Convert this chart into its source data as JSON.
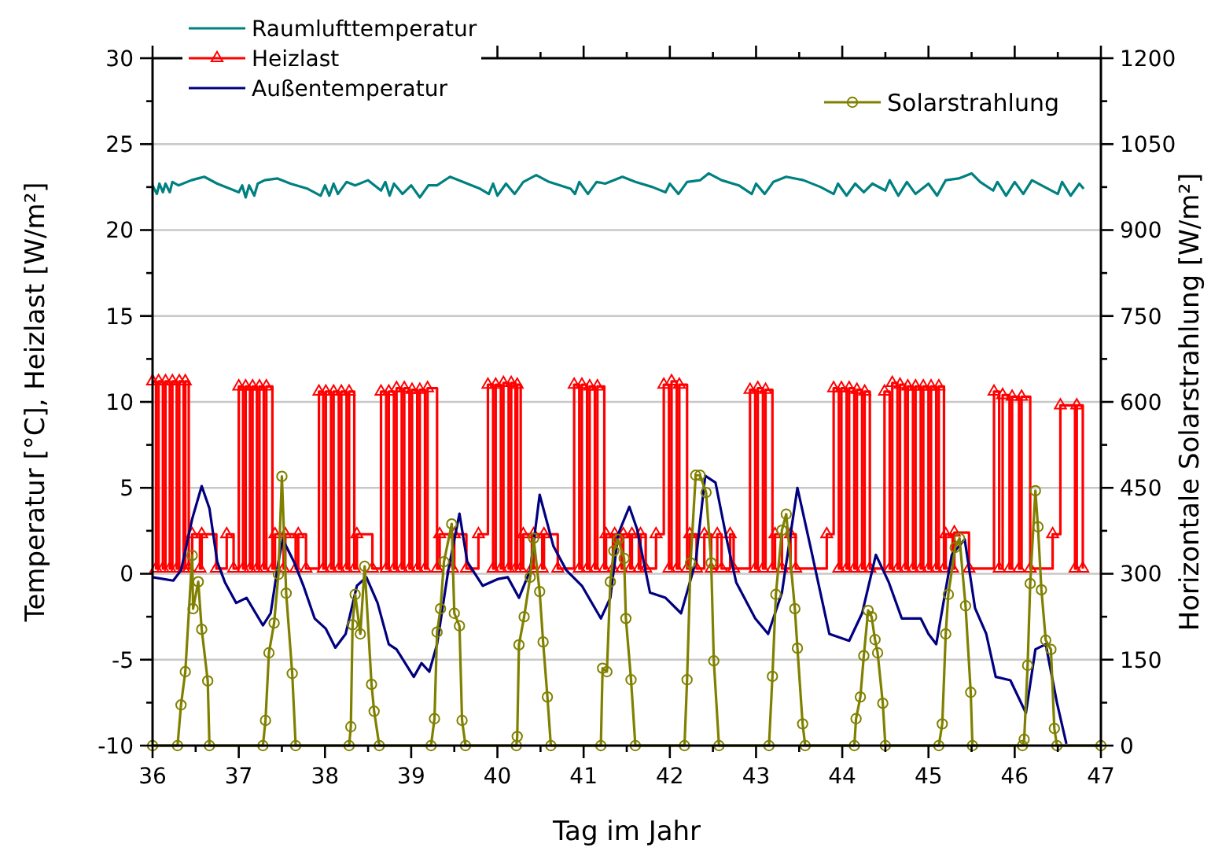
{
  "chart_data": {
    "type": "line",
    "xlabel": "Tag im Jahr",
    "ylabel": "Temperatur [°C], Heizlast [W/m²]",
    "y2label": "Horizontale Solarstrahlung [W/m²]",
    "xlim": [
      36,
      47
    ],
    "xticks": [
      36,
      {
        "value": 36.5,
        "label": null
      },
      37,
      {
        "value": 37.5,
        "label": null
      },
      38,
      {
        "value": 38.5,
        "label": null
      },
      39,
      {
        "value": 39.5,
        "label": null
      },
      40,
      {
        "value": 40.5,
        "label": null
      },
      41,
      {
        "value": 41.5,
        "label": null
      },
      42,
      {
        "value": 42.5,
        "label": null
      },
      43,
      {
        "value": 43.5,
        "label": null
      },
      44,
      {
        "value": 44.5,
        "label": null
      },
      45,
      {
        "value": 45.5,
        "label": null
      },
      46,
      {
        "value": 46.5,
        "label": null
      },
      47
    ],
    "ylim": [
      -10,
      30
    ],
    "yticks": [
      -10,
      {
        "value": -7.5,
        "label": null
      },
      -5,
      {
        "value": -2.5,
        "label": null
      },
      0,
      {
        "value": 2.5,
        "label": null
      },
      5,
      {
        "value": 7.5,
        "label": null
      },
      10,
      {
        "value": 12.5,
        "label": null
      },
      15,
      {
        "value": 17.5,
        "label": null
      },
      20,
      {
        "value": 22.5,
        "label": null
      },
      25,
      {
        "value": 27.5,
        "label": null
      },
      30
    ],
    "y2lim": [
      0,
      1200
    ],
    "y2ticks": [
      0,
      {
        "value": 75,
        "label": null
      },
      150,
      {
        "value": 225,
        "label": null
      },
      300,
      {
        "value": 375,
        "label": null
      },
      450,
      {
        "value": 525,
        "label": null
      },
      600,
      {
        "value": 675,
        "label": null
      },
      750,
      {
        "value": 825,
        "label": null
      },
      900,
      {
        "value": 975,
        "label": null
      },
      1050,
      {
        "value": 1125,
        "label": null
      },
      1200
    ],
    "grid": "y",
    "legend": "top left",
    "series": [
      {
        "name": "Raumlufttemperatur",
        "color": "#008080",
        "marker": "none",
        "x": [
          36,
          36.05,
          36.08,
          36.12,
          36.15,
          36.2,
          36.23,
          36.3,
          36.45,
          36.6,
          36.75,
          36.9,
          37,
          37.04,
          37.08,
          37.12,
          37.18,
          37.22,
          37.3,
          37.45,
          37.6,
          37.8,
          37.95,
          38,
          38.05,
          38.1,
          38.15,
          38.25,
          38.35,
          38.5,
          38.65,
          38.7,
          38.75,
          38.8,
          38.9,
          39,
          39.1,
          39.2,
          39.3,
          39.45,
          39.6,
          39.8,
          39.9,
          39.95,
          40,
          40.1,
          40.2,
          40.3,
          40.45,
          40.6,
          40.85,
          40.9,
          40.95,
          41.05,
          41.15,
          41.25,
          41.45,
          41.6,
          41.8,
          41.95,
          42,
          42.1,
          42.2,
          42.35,
          42.45,
          42.6,
          42.8,
          42.95,
          43,
          43.1,
          43.2,
          43.35,
          43.55,
          43.75,
          43.9,
          43.95,
          44.05,
          44.15,
          44.25,
          44.35,
          44.5,
          44.55,
          44.65,
          44.75,
          44.85,
          45,
          45.1,
          45.2,
          45.35,
          45.5,
          45.6,
          45.75,
          45.8,
          45.9,
          46,
          46.1,
          46.2,
          46.35,
          46.5,
          46.55,
          46.65,
          46.75,
          46.8
        ],
        "values": [
          22.6,
          22.1,
          22.7,
          22.2,
          22.7,
          22.2,
          22.8,
          22.6,
          22.9,
          23.1,
          22.7,
          22.4,
          22.2,
          22.6,
          21.9,
          22.6,
          22,
          22.7,
          22.9,
          23,
          22.7,
          22.4,
          22,
          22.6,
          22,
          22.7,
          22.1,
          22.8,
          22.6,
          22.9,
          22.3,
          22.8,
          22,
          22.7,
          22.1,
          22.6,
          21.9,
          22.6,
          22.6,
          23.1,
          22.8,
          22.4,
          22.1,
          22.7,
          22,
          22.7,
          22.1,
          22.8,
          23.2,
          22.8,
          22.4,
          22.1,
          22.8,
          22.1,
          22.8,
          22.7,
          23.1,
          22.8,
          22.5,
          22.2,
          22.7,
          22.1,
          22.8,
          22.9,
          23.3,
          22.9,
          22.6,
          22.1,
          22.7,
          22.1,
          22.8,
          23.1,
          22.9,
          22.5,
          22.1,
          22.7,
          22,
          22.7,
          22.2,
          22.7,
          22.3,
          22.9,
          22,
          22.8,
          22.1,
          22.7,
          22,
          22.9,
          23,
          23.3,
          22.8,
          22.3,
          22.8,
          22,
          22.8,
          22.1,
          22.9,
          22.5,
          22.1,
          22.8,
          22,
          22.7,
          22.4
        ]
      },
      {
        "name": "Heizlast",
        "type": "step",
        "color": "#ff0000",
        "marker": "triangle",
        "x": [
          36,
          36.04,
          36.07,
          36.12,
          36.15,
          36.2,
          36.23,
          36.28,
          36.31,
          36.36,
          36.38,
          36.42,
          36.46,
          36.55,
          36.57,
          36.74,
          36.86,
          36.94,
          37,
          37.05,
          37.08,
          37.13,
          37.16,
          37.21,
          37.24,
          37.29,
          37.32,
          37.39,
          37.42,
          37.52,
          37.54,
          37.66,
          37.69,
          37.78,
          37.93,
          37.98,
          38.01,
          38.07,
          38.1,
          38.16,
          38.19,
          38.25,
          38.28,
          38.34,
          38.37,
          38.55,
          38.65,
          38.71,
          38.74,
          38.8,
          38.83,
          38.89,
          38.92,
          38.98,
          39.01,
          39.07,
          39.1,
          39.16,
          39.19,
          39.3,
          39.33,
          39.48,
          39.5,
          39.64,
          39.78,
          39.89,
          39.95,
          39.98,
          40.04,
          40.07,
          40.13,
          40.16,
          40.21,
          40.23,
          40.27,
          40.3,
          40.4,
          40.42,
          40.52,
          40.54,
          40.7,
          40.89,
          40.95,
          40.98,
          41.04,
          41.07,
          41.13,
          41.16,
          41.24,
          41.26,
          41.34,
          41.36,
          41.44,
          41.46,
          41.54,
          41.56,
          41.64,
          41.66,
          41.72,
          41.84,
          41.93,
          41.99,
          42.02,
          42.08,
          42.11,
          42.2,
          42.23,
          42.31,
          42.4,
          42.48,
          42.55,
          42.6,
          42.7,
          42.74,
          42.93,
          42.99,
          43.02,
          43.08,
          43.11,
          43.19,
          43.22,
          43.3,
          43.4,
          43.46,
          43.82,
          43.9,
          43.96,
          43.99,
          44.05,
          44.08,
          44.14,
          44.17,
          44.23,
          44.26,
          44.32,
          44.49,
          44.55,
          44.58,
          44.64,
          44.67,
          44.73,
          44.76,
          44.82,
          44.85,
          44.91,
          44.94,
          45,
          45.03,
          45.09,
          45.12,
          45.18,
          45.2,
          45.28,
          45.3,
          45.47,
          45.76,
          45.82,
          45.86,
          45.94,
          45.97,
          46.05,
          46.08,
          46.18,
          46.44,
          46.53,
          46.7,
          46.72,
          46.79
        ],
        "values": [
          11.2,
          0.3,
          11.2,
          0.3,
          11.2,
          0.3,
          11.2,
          0.3,
          11.2,
          0.3,
          11.2,
          0.3,
          2.3,
          0.3,
          2.3,
          0.3,
          2.3,
          0.3,
          10.9,
          0.3,
          10.9,
          0.3,
          10.9,
          0.3,
          10.9,
          0.3,
          10.9,
          0.3,
          2.3,
          0.3,
          2.3,
          0.3,
          2.3,
          0.3,
          10.6,
          0.3,
          10.6,
          0.3,
          10.6,
          0.3,
          10.6,
          0.3,
          10.6,
          0.3,
          2.3,
          0.3,
          10.6,
          0.3,
          10.6,
          0.3,
          10.8,
          0.3,
          10.8,
          0.3,
          10.7,
          0.3,
          10.7,
          0.3,
          10.8,
          0.3,
          2.3,
          0.3,
          2.3,
          0.3,
          2.3,
          11,
          0.3,
          11,
          0.3,
          11.1,
          0.3,
          11.1,
          0.3,
          11,
          0.3,
          2.3,
          0.3,
          2.3,
          0.3,
          2.3,
          0.3,
          11,
          0.3,
          11,
          0.3,
          10.9,
          0.3,
          10.9,
          0.3,
          2.3,
          0.3,
          2.3,
          0.3,
          2.3,
          0.3,
          2.3,
          0.3,
          2.3,
          0.3,
          2.3,
          11,
          0.3,
          11.2,
          0.3,
          11,
          0.3,
          2.3,
          0.3,
          2.3,
          0.3,
          2.3,
          0.3,
          2.3,
          0.3,
          10.7,
          0.3,
          10.8,
          0.3,
          10.7,
          0.3,
          2.3,
          0.3,
          2.3,
          0.3,
          2.3,
          10.8,
          0.3,
          10.8,
          0.3,
          10.8,
          0.3,
          10.7,
          0.3,
          10.6,
          0.3,
          10.6,
          0.3,
          11.1,
          0.3,
          11,
          0.3,
          10.9,
          0.3,
          10.9,
          0.3,
          10.9,
          0.3,
          10.9,
          0.3,
          10.9,
          0.3,
          2.3,
          0.3,
          2.4,
          0.3,
          10.6,
          0.3,
          10.4,
          0.3,
          10.3,
          0.3,
          10.3,
          0.3,
          2.3,
          9.8,
          0.3,
          9.8,
          0.3
        ]
      },
      {
        "name": "Außentemperatur",
        "color": "#000080",
        "marker": "none",
        "x": [
          36,
          36.24,
          36.33,
          36.46,
          36.57,
          36.66,
          36.75,
          36.84,
          36.97,
          37.09,
          37.28,
          37.37,
          37.46,
          37.51,
          37.64,
          37.75,
          37.88,
          38.01,
          38.12,
          38.24,
          38.37,
          38.48,
          38.61,
          38.74,
          38.83,
          39.03,
          39.12,
          39.21,
          39.3,
          39.43,
          39.56,
          39.65,
          39.83,
          40.01,
          40.12,
          40.25,
          40.38,
          40.49,
          40.65,
          40.8,
          40.98,
          41.2,
          41.31,
          41.4,
          41.53,
          41.62,
          41.77,
          41.95,
          42.13,
          42.3,
          42.41,
          42.53,
          42.66,
          42.77,
          42.99,
          43.14,
          43.3,
          43.48,
          43.63,
          43.85,
          44.08,
          44.23,
          44.39,
          44.54,
          44.69,
          44.91,
          45,
          45.09,
          45.27,
          45.42,
          45.54,
          45.67,
          45.78,
          45.95,
          46.13,
          46.24,
          46.36,
          46.49,
          46.6
        ],
        "values": [
          -0.2,
          -0.4,
          0.2,
          3.2,
          5.1,
          3.8,
          0.7,
          -0.5,
          -1.7,
          -1.4,
          -3,
          -2.3,
          0.7,
          2,
          0.7,
          -0.7,
          -2.6,
          -3.2,
          -4.3,
          -3.5,
          -0.7,
          -0.2,
          -1.7,
          -4.1,
          -4.4,
          -6,
          -5.2,
          -5.7,
          -4.1,
          0.2,
          3.5,
          0.7,
          -0.7,
          -0.3,
          -0.2,
          -1.4,
          0.2,
          4.6,
          1.6,
          0.2,
          -0.7,
          -2.6,
          -1.4,
          2.3,
          3.9,
          2.6,
          -1.1,
          -1.4,
          -2.3,
          0.7,
          5.7,
          5.3,
          2,
          -0.5,
          -2.6,
          -3.5,
          -1.1,
          5,
          1.6,
          -3.5,
          -3.9,
          -2.3,
          1.1,
          -0.5,
          -2.6,
          -2.6,
          -3.5,
          -4.1,
          1.1,
          2,
          -2,
          -3.5,
          -6,
          -6.2,
          -8.1,
          -4.4,
          -4.1,
          -7.5,
          -9.9
        ]
      },
      {
        "name": "Solarstrahlung",
        "axis": "y2",
        "color": "#808000",
        "marker": "circle",
        "x": [
          36,
          36.29,
          36.33,
          36.38,
          36.46,
          36.47,
          36.53,
          36.57,
          36.64,
          36.66,
          37.28,
          37.31,
          37.35,
          37.41,
          37.46,
          37.5,
          37.55,
          37.62,
          37.66,
          38.28,
          38.3,
          38.32,
          38.35,
          38.41,
          38.46,
          38.54,
          38.57,
          38.63,
          39.23,
          39.27,
          39.3,
          39.34,
          39.38,
          39.47,
          39.5,
          39.56,
          39.59,
          39.63,
          40.22,
          40.23,
          40.25,
          40.31,
          40.38,
          40.42,
          40.49,
          40.53,
          40.58,
          40.62,
          41.2,
          41.22,
          41.27,
          41.31,
          41.35,
          41.4,
          41.47,
          41.49,
          41.55,
          41.6,
          42.17,
          42.2,
          42.24,
          42.3,
          42.35,
          42.42,
          42.48,
          42.51,
          42.57,
          43.15,
          43.19,
          43.23,
          43.3,
          43.35,
          43.45,
          43.48,
          43.54,
          43.57,
          44.14,
          44.16,
          44.21,
          44.25,
          44.3,
          44.34,
          44.38,
          44.41,
          44.47,
          44.5,
          45.12,
          45.16,
          45.2,
          45.23,
          45.31,
          45.36,
          45.43,
          45.49,
          45.51,
          46.09,
          46.11,
          46.15,
          46.18,
          46.24,
          46.27,
          46.31,
          46.36,
          46.42,
          46.46,
          46.49,
          47
        ],
        "values": [
          0,
          0,
          71,
          129,
          332,
          239,
          286,
          203,
          113,
          0,
          0,
          44,
          162,
          214,
          299,
          470,
          266,
          126,
          0,
          0,
          33,
          211,
          264,
          195,
          313,
          107,
          60,
          0,
          0,
          47,
          198,
          239,
          321,
          387,
          231,
          209,
          44,
          0,
          0,
          16,
          176,
          225,
          294,
          362,
          269,
          181,
          85,
          0,
          0,
          135,
          129,
          286,
          340,
          360,
          327,
          222,
          115,
          0,
          0,
          115,
          319,
          472,
          472,
          442,
          319,
          148,
          0,
          0,
          121,
          264,
          376,
          404,
          239,
          170,
          38,
          0,
          0,
          47,
          85,
          157,
          236,
          225,
          185,
          162,
          74,
          0,
          0,
          38,
          195,
          264,
          346,
          362,
          244,
          93,
          0,
          0,
          11,
          140,
          283,
          445,
          382,
          272,
          184,
          168,
          30,
          0,
          0
        ]
      }
    ]
  }
}
